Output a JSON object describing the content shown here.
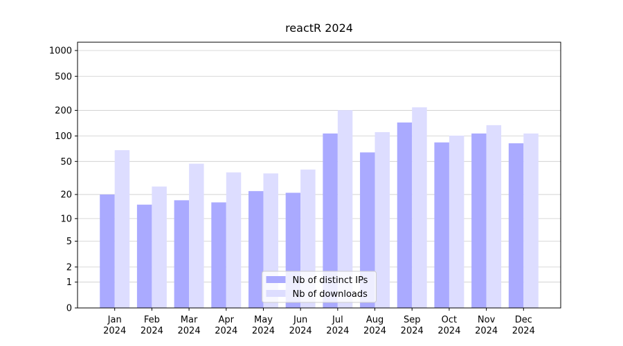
{
  "chart_data": {
    "type": "bar",
    "title": "reactR 2024",
    "categories": [
      "Jan 2024",
      "Feb 2024",
      "Mar 2024",
      "Apr 2024",
      "May 2024",
      "Jun 2024",
      "Jul 2024",
      "Aug 2024",
      "Sep 2024",
      "Oct 2024",
      "Nov 2024",
      "Dec 2024"
    ],
    "series": [
      {
        "name": "Nb of distinct IPs",
        "color": "#aaaaff",
        "values": [
          20,
          15,
          17,
          16,
          22,
          21,
          107,
          64,
          144,
          84,
          107,
          82
        ]
      },
      {
        "name": "Nb of downloads",
        "color": "#ddddff",
        "values": [
          68,
          25,
          47,
          37,
          36,
          40,
          201,
          111,
          217,
          101,
          134,
          107
        ]
      }
    ],
    "yscale": "log1p",
    "ylim": [
      0,
      1250
    ],
    "yticks": [
      0,
      1,
      2,
      5,
      10,
      20,
      50,
      100,
      200,
      500,
      1000
    ],
    "grid": true,
    "legend": "lower center"
  }
}
